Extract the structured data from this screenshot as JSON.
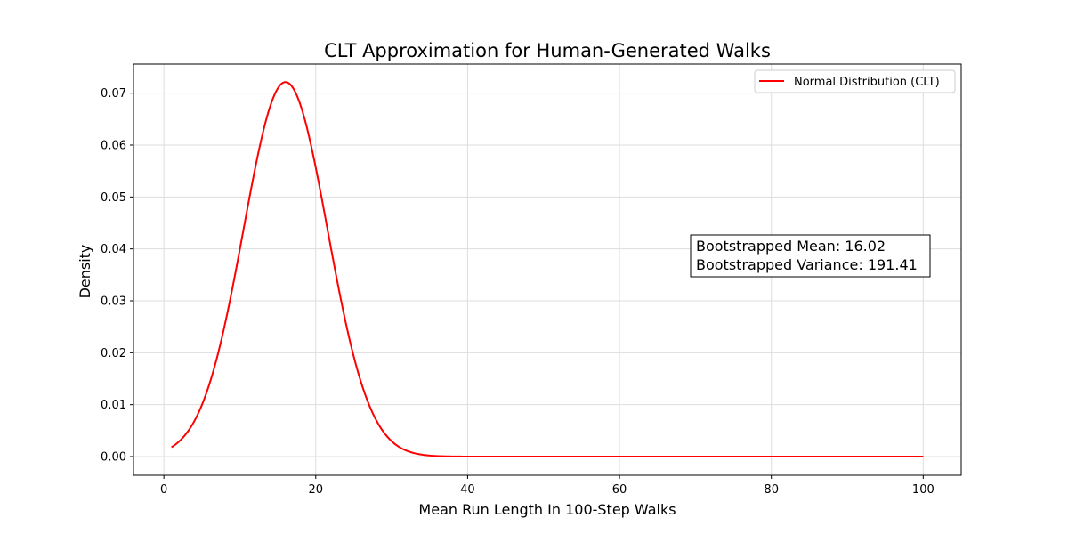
{
  "chart_data": {
    "type": "line",
    "title": "CLT Approximation for Human-Generated Walks",
    "xlabel": "Mean Run Length In 100-Step Walks",
    "ylabel": "Density",
    "xlim": [
      -4,
      105
    ],
    "ylim": [
      -0.0036,
      0.0756
    ],
    "xticks": [
      0,
      20,
      40,
      60,
      80,
      100
    ],
    "xtick_labels": [
      "0",
      "20",
      "40",
      "60",
      "80",
      "100"
    ],
    "yticks": [
      0.0,
      0.01,
      0.02,
      0.03,
      0.04,
      0.05,
      0.06,
      0.07
    ],
    "ytick_labels": [
      "0.00",
      "0.01",
      "0.02",
      "0.03",
      "0.04",
      "0.05",
      "0.06",
      "0.07"
    ],
    "grid": true,
    "legend_position": "upper right",
    "series": [
      {
        "name": "Normal Distribution (CLT)",
        "color": "#ff0000",
        "distribution": "normal",
        "mean": 16.02,
        "std": 5.53,
        "x_start": 1,
        "x_end": 100
      }
    ],
    "annotation": {
      "lines": [
        "Bootstrapped Mean: 16.02",
        "Bootstrapped Variance: 191.41"
      ]
    }
  }
}
